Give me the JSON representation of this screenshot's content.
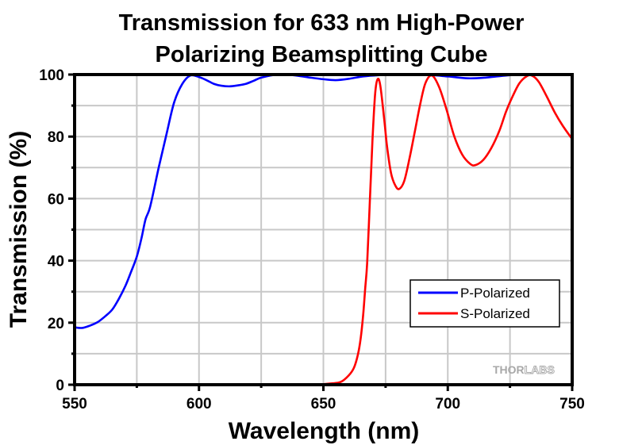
{
  "chart_data": {
    "type": "line",
    "title": [
      "Transmission for 633 nm High-Power",
      "Polarizing Beamsplitting Cube"
    ],
    "xlabel": "Wavelength (nm)",
    "ylabel": "Transmission (%)",
    "xlim": [
      550,
      750
    ],
    "ylim": [
      0,
      100
    ],
    "x_ticks": [
      550,
      600,
      650,
      700,
      750
    ],
    "x_tick_labels": [
      "550",
      "600",
      "650",
      "700",
      "750"
    ],
    "x_minor_ticks": [
      575,
      625,
      675,
      725
    ],
    "y_ticks": [
      0,
      20,
      40,
      60,
      80,
      100
    ],
    "y_tick_labels": [
      "0",
      "20",
      "40",
      "60",
      "80",
      "100"
    ],
    "y_minor_ticks": [
      10,
      30,
      50,
      70,
      90
    ],
    "grid": true,
    "legend_position": "lower-right",
    "watermark": {
      "solid": "THOR",
      "outline": "LABS"
    },
    "series": [
      {
        "name": "P-Polarized",
        "color": "#0000ff",
        "points": [
          [
            550,
            18.5
          ],
          [
            553,
            18.3
          ],
          [
            556,
            19.0
          ],
          [
            559.3,
            20.2
          ],
          [
            562.5,
            22.2
          ],
          [
            565.2,
            24.3
          ],
          [
            567.8,
            27.7
          ],
          [
            570.5,
            32.0
          ],
          [
            572.6,
            36.2
          ],
          [
            575,
            41.3
          ],
          [
            576.9,
            47.3
          ],
          [
            578.5,
            53.3
          ],
          [
            580.4,
            57.5
          ],
          [
            583.8,
            70.0
          ],
          [
            587,
            81.0
          ],
          [
            590,
            91.0
          ],
          [
            593.3,
            97.0
          ],
          [
            596.5,
            99.7
          ],
          [
            599.7,
            99.3
          ],
          [
            603,
            98.2
          ],
          [
            606,
            97.0
          ],
          [
            609,
            96.4
          ],
          [
            612.4,
            96.2
          ],
          [
            615.5,
            96.5
          ],
          [
            618.8,
            97.0
          ],
          [
            622,
            98.0
          ],
          [
            625,
            99.0
          ],
          [
            631.5,
            100.0
          ],
          [
            638,
            99.8
          ],
          [
            645,
            99.0
          ],
          [
            650,
            98.5
          ],
          [
            654.9,
            98.2
          ],
          [
            660,
            98.6
          ],
          [
            666,
            99.4
          ],
          [
            672,
            99.8
          ],
          [
            680,
            100.0
          ],
          [
            690,
            100.0
          ],
          [
            700,
            99.4
          ],
          [
            708,
            98.8
          ],
          [
            715,
            99.0
          ],
          [
            722,
            99.6
          ],
          [
            730,
            100.0
          ],
          [
            740,
            100.0
          ],
          [
            750,
            100.0
          ]
        ]
      },
      {
        "name": "S-Polarized",
        "color": "#ff0000",
        "points": [
          [
            550,
            0.0
          ],
          [
            600,
            0.0
          ],
          [
            640,
            0.0
          ],
          [
            648,
            0.1
          ],
          [
            653,
            0.4
          ],
          [
            657,
            0.9
          ],
          [
            660.2,
            3.0
          ],
          [
            662.3,
            5.5
          ],
          [
            663.9,
            9.8
          ],
          [
            665,
            15.0
          ],
          [
            666,
            22.6
          ],
          [
            666.8,
            31.0
          ],
          [
            667.6,
            39.3
          ],
          [
            668.7,
            59.7
          ],
          [
            669.7,
            78.4
          ],
          [
            670.8,
            93.8
          ],
          [
            671.8,
            98.5
          ],
          [
            672.9,
            96.3
          ],
          [
            674.5,
            85.2
          ],
          [
            675.6,
            76.7
          ],
          [
            677.2,
            68.2
          ],
          [
            678.8,
            64.4
          ],
          [
            680.4,
            63.1
          ],
          [
            682.5,
            65.7
          ],
          [
            684.7,
            73.3
          ],
          [
            686.8,
            81.8
          ],
          [
            688.9,
            90.4
          ],
          [
            691,
            97.2
          ],
          [
            693.6,
            99.7
          ],
          [
            696.5,
            96.0
          ],
          [
            699.5,
            88.7
          ],
          [
            702.6,
            80.1
          ],
          [
            705.8,
            74.2
          ],
          [
            709,
            71.2
          ],
          [
            711.1,
            70.8
          ],
          [
            714.3,
            72.5
          ],
          [
            717.5,
            76.3
          ],
          [
            720.7,
            81.8
          ],
          [
            723.3,
            87.8
          ],
          [
            725.5,
            92.0
          ],
          [
            728.7,
            97.1
          ],
          [
            731.8,
            99.5
          ],
          [
            734,
            99.6
          ],
          [
            736.6,
            97.6
          ],
          [
            739.8,
            92.9
          ],
          [
            743,
            87.8
          ],
          [
            746.2,
            83.5
          ],
          [
            750,
            79.2
          ]
        ]
      }
    ]
  }
}
